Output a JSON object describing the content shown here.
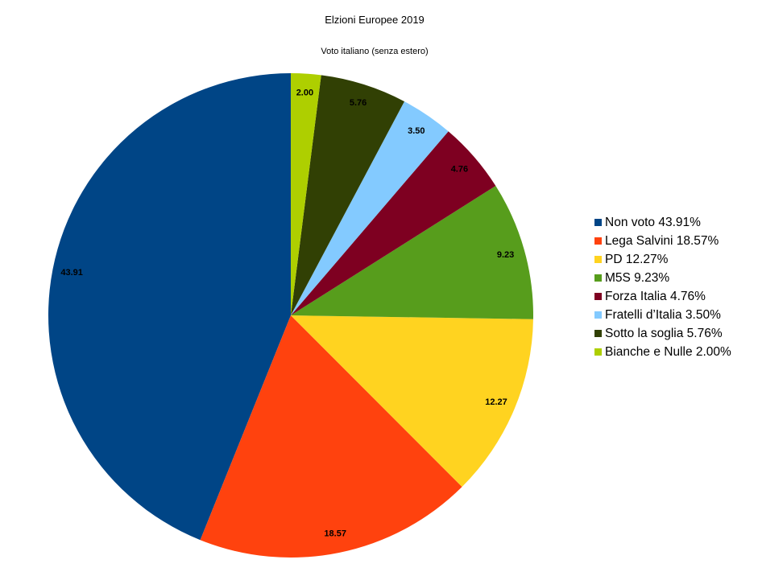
{
  "chart_data": {
    "type": "pie",
    "title": "Elzioni Europee 2019",
    "subtitle": "Voto italiano (senza estero)",
    "legend_position": "right",
    "slices": [
      {
        "name": "Non voto",
        "value": 43.91,
        "label": "43.91",
        "legend": "Non voto 43.91%",
        "color": "#004586"
      },
      {
        "name": "Lega Salvini",
        "value": 18.57,
        "label": "18.57",
        "legend": "Lega Salvini 18.57%",
        "color": "#ff420e"
      },
      {
        "name": "PD",
        "value": 12.27,
        "label": "12.27",
        "legend": "PD 12.27%",
        "color": "#ffd320"
      },
      {
        "name": "M5S",
        "value": 9.23,
        "label": "9.23",
        "legend": "M5S 9.23%",
        "color": "#579d1c"
      },
      {
        "name": "Forza Italia",
        "value": 4.76,
        "label": "4.76",
        "legend": "Forza Italia 4.76%",
        "color": "#7e0021"
      },
      {
        "name": "Fratelli d’Italia",
        "value": 3.5,
        "label": "3.50",
        "legend": "Fratelli d’Italia 3.50%",
        "color": "#83caff"
      },
      {
        "name": "Sotto la soglia",
        "value": 5.76,
        "label": "5.76",
        "legend": "Sotto la soglia 5.76%",
        "color": "#314004"
      },
      {
        "name": "Bianche e Nulle",
        "value": 2.0,
        "label": "2.00",
        "legend": "Bianche e Nulle 2.00%",
        "color": "#aecf00"
      }
    ]
  }
}
